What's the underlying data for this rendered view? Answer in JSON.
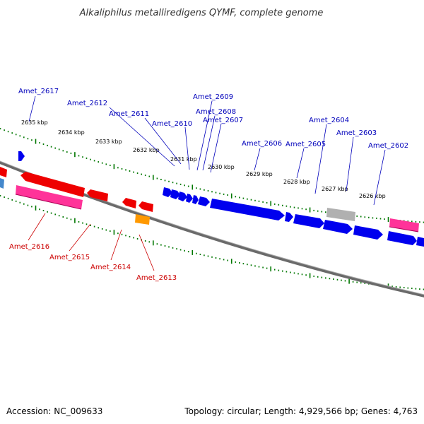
{
  "title": "Alkaliphilus metalliredigens QYMF, complete genome",
  "footer": {
    "accession": "Accession: NC_009633",
    "summary": "Topology: circular; Length: 4,929,566 bp; Genes: 4,763"
  },
  "colors": {
    "backbone": "#808080",
    "forward": "#0000ee",
    "reverse": "#ee0000",
    "pink": "#ff3399",
    "orange": "#ff9900",
    "grey_gene": "#b0b0b0",
    "steel": "#4488cc",
    "ticks": "#007700",
    "forward_label": "#0000bb",
    "reverse_label": "#cc0000"
  },
  "kbp_ticks": [
    "2635 kbp",
    "2634 kbp",
    "2633 kbp",
    "2632 kbp",
    "2631 kbp",
    "2630 kbp",
    "2629 kbp",
    "2628 kbp",
    "2627 kbp",
    "2626 kbp"
  ],
  "forward_labels": [
    "Amet_2617",
    "Amet_2612",
    "Amet_2611",
    "Amet_2610",
    "Amet_2609",
    "Amet_2608",
    "Amet_2607",
    "Amet_2606",
    "Amet_2605",
    "Amet_2604",
    "Amet_2603",
    "Amet_2602"
  ],
  "reverse_labels": [
    "Amet_2616",
    "Amet_2615",
    "Amet_2614",
    "Amet_2613"
  ]
}
